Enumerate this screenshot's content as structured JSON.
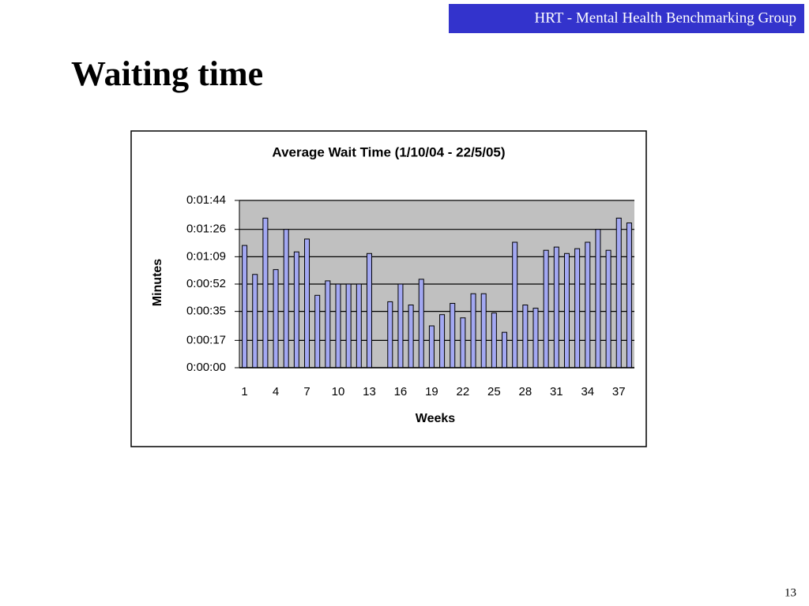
{
  "header": {
    "group": "HRT - Mental Health Benchmarking Group"
  },
  "slide_title": "Waiting time",
  "page_number": "13",
  "chart_data": {
    "type": "bar",
    "title": "Average Wait Time (1/10/04 - 22/5/05)",
    "x_label": "Weeks",
    "y_label": "Minutes",
    "categories": [
      "1",
      null,
      null,
      "4",
      null,
      null,
      "7",
      null,
      null,
      "10",
      null,
      null,
      "13",
      null,
      null,
      "16",
      null,
      null,
      "19",
      null,
      null,
      "22",
      null,
      null,
      "25",
      null,
      null,
      "28",
      null,
      null,
      "31",
      null,
      null,
      "34",
      null,
      null,
      "37",
      null
    ],
    "values": [
      76,
      58,
      93,
      61,
      86,
      72,
      80,
      45,
      54,
      52,
      52,
      52,
      71,
      null,
      41,
      52,
      39,
      55,
      26,
      33,
      40,
      31,
      46,
      46,
      34,
      22,
      78,
      39,
      37,
      73,
      75,
      71,
      74,
      78,
      86,
      73,
      93,
      90
    ],
    "color": "#a3a8f2",
    "ylim": [
      0,
      104
    ],
    "yticks": [
      {
        "value": 0,
        "label": "0:00:00"
      },
      {
        "value": 17,
        "label": "0:00:17"
      },
      {
        "value": 35,
        "label": "0:00:35"
      },
      {
        "value": 52,
        "label": "0:00:52"
      },
      {
        "value": 69,
        "label": "0:01:09"
      },
      {
        "value": 86,
        "label": "0:01:26"
      },
      {
        "value": 104,
        "label": "0:01:44"
      }
    ],
    "grid": true
  }
}
